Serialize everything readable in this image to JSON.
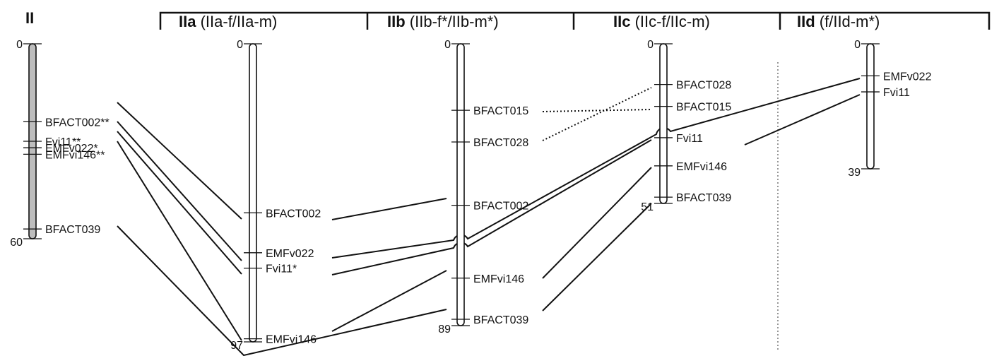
{
  "reference_group": "II",
  "groups": [
    {
      "id": "IIa",
      "bold": "IIa",
      "rest": " (IIa-f/IIa-m)"
    },
    {
      "id": "IIb",
      "bold": "IIb",
      "rest": " (IIb-f*/IIb-m*)"
    },
    {
      "id": "IIc",
      "bold": "IIc",
      "rest": " (IIc-f/IIc-m)"
    },
    {
      "id": "IId",
      "bold": "IId",
      "rest": " (f/IId-m*)"
    }
  ],
  "chromosomes": [
    {
      "id": "II",
      "filled": true,
      "start_label": "0",
      "end_label": "60",
      "markers": [
        {
          "name": "BFACT002**",
          "pos": 24
        },
        {
          "name": "Fvi11**",
          "pos": 30
        },
        {
          "name": "EMFv022*",
          "pos": 32
        },
        {
          "name": "EMFvi146**",
          "pos": 34
        },
        {
          "name": "BFACT039",
          "pos": 57
        }
      ]
    },
    {
      "id": "IIa",
      "filled": false,
      "start_label": "0",
      "end_label": "97",
      "markers": [
        {
          "name": "BFACT002",
          "pos": 55
        },
        {
          "name": "EMFv022",
          "pos": 68
        },
        {
          "name": "Fvi11*",
          "pos": 73
        },
        {
          "name": "EMFvi146",
          "pos": 96
        }
      ]
    },
    {
      "id": "IIb",
      "filled": false,
      "start_label": "0",
      "end_label": "89",
      "markers": [
        {
          "name": "BFACT015",
          "pos": 21
        },
        {
          "name": "BFACT028",
          "pos": 31
        },
        {
          "name": "BFACT002",
          "pos": 51
        },
        {
          "name": "EMFvi146",
          "pos": 74
        },
        {
          "name": "BFACT039",
          "pos": 87
        }
      ]
    },
    {
      "id": "IIc",
      "filled": false,
      "start_label": "0",
      "end_label": "51",
      "markers": [
        {
          "name": "BFACT028",
          "pos": 13
        },
        {
          "name": "BFACT015",
          "pos": 20
        },
        {
          "name": "Fvi11",
          "pos": 30
        },
        {
          "name": "EMFvi146",
          "pos": 39
        },
        {
          "name": "BFACT039",
          "pos": 49
        }
      ]
    },
    {
      "id": "IId",
      "filled": false,
      "start_label": "0",
      "end_label": "39",
      "markers": [
        {
          "name": "EMFv022",
          "pos": 10
        },
        {
          "name": "Fvi11",
          "pos": 15
        }
      ]
    }
  ],
  "links": [
    {
      "from": "II",
      "to": "IIa",
      "marker": "BFACT002"
    },
    {
      "from": "II",
      "to": "IIa",
      "marker": "EMFv022"
    },
    {
      "from": "II",
      "to": "IIa",
      "marker": "Fvi11"
    },
    {
      "from": "II",
      "to": "IIa",
      "marker": "EMFvi146"
    },
    {
      "from": "II",
      "to": "IIb",
      "marker": "BFACT039"
    },
    {
      "from": "IIa",
      "to": "IIb",
      "marker": "BFACT002"
    },
    {
      "from": "IIa",
      "to": "IId",
      "marker": "EMFv022"
    },
    {
      "from": "IIa",
      "to": "IIc",
      "marker": "Fvi11"
    },
    {
      "from": "IIa",
      "to": "IIb",
      "marker": "EMFvi146"
    },
    {
      "from": "IIb",
      "to": "IIc",
      "marker": "BFACT015",
      "style": "dotted"
    },
    {
      "from": "IIb",
      "to": "IIc",
      "marker": "BFACT028",
      "style": "dotted"
    },
    {
      "from": "IIb",
      "to": "IIc",
      "marker": "EMFvi146"
    },
    {
      "from": "IIb",
      "to": "IIc",
      "marker": "BFACT039"
    },
    {
      "from": "IIc",
      "to": "IId",
      "marker": "Fvi11"
    }
  ]
}
